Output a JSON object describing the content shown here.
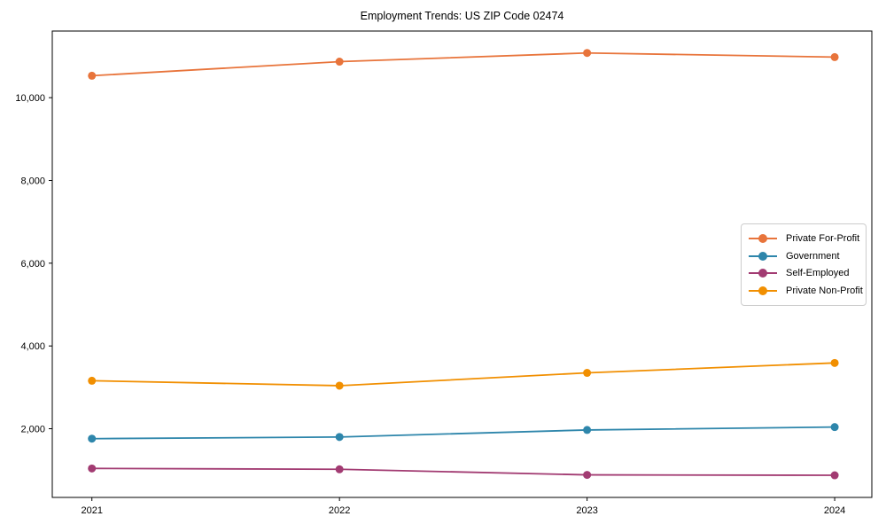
{
  "chart_data": {
    "type": "line",
    "title": "Employment Trends: US ZIP Code 02474",
    "xlabel": "",
    "ylabel": "",
    "x": [
      2021,
      2022,
      2023,
      2024
    ],
    "x_tick_labels": [
      "2021",
      "2022",
      "2023",
      "2024"
    ],
    "y_ticks": [
      2000,
      4000,
      6000,
      8000,
      10000
    ],
    "y_tick_labels": [
      "2,000",
      "4,000",
      "6,000",
      "8,000",
      "10,000"
    ],
    "xlim": [
      2020.84,
      2024.15
    ],
    "ylim": [
      340,
      11610
    ],
    "grid": false,
    "legend_position": "center right",
    "series": [
      {
        "name": "Private For-Profit",
        "color": "#E8743B",
        "values": [
          10530,
          10870,
          11080,
          10980
        ]
      },
      {
        "name": "Government",
        "color": "#2E86AB",
        "values": [
          1760,
          1800,
          1970,
          2040
        ]
      },
      {
        "name": "Self-Employed",
        "color": "#A23B72",
        "values": [
          1040,
          1020,
          885,
          875
        ]
      },
      {
        "name": "Private Non-Profit",
        "color": "#F18F01",
        "values": [
          3160,
          3040,
          3350,
          3590
        ]
      }
    ]
  }
}
